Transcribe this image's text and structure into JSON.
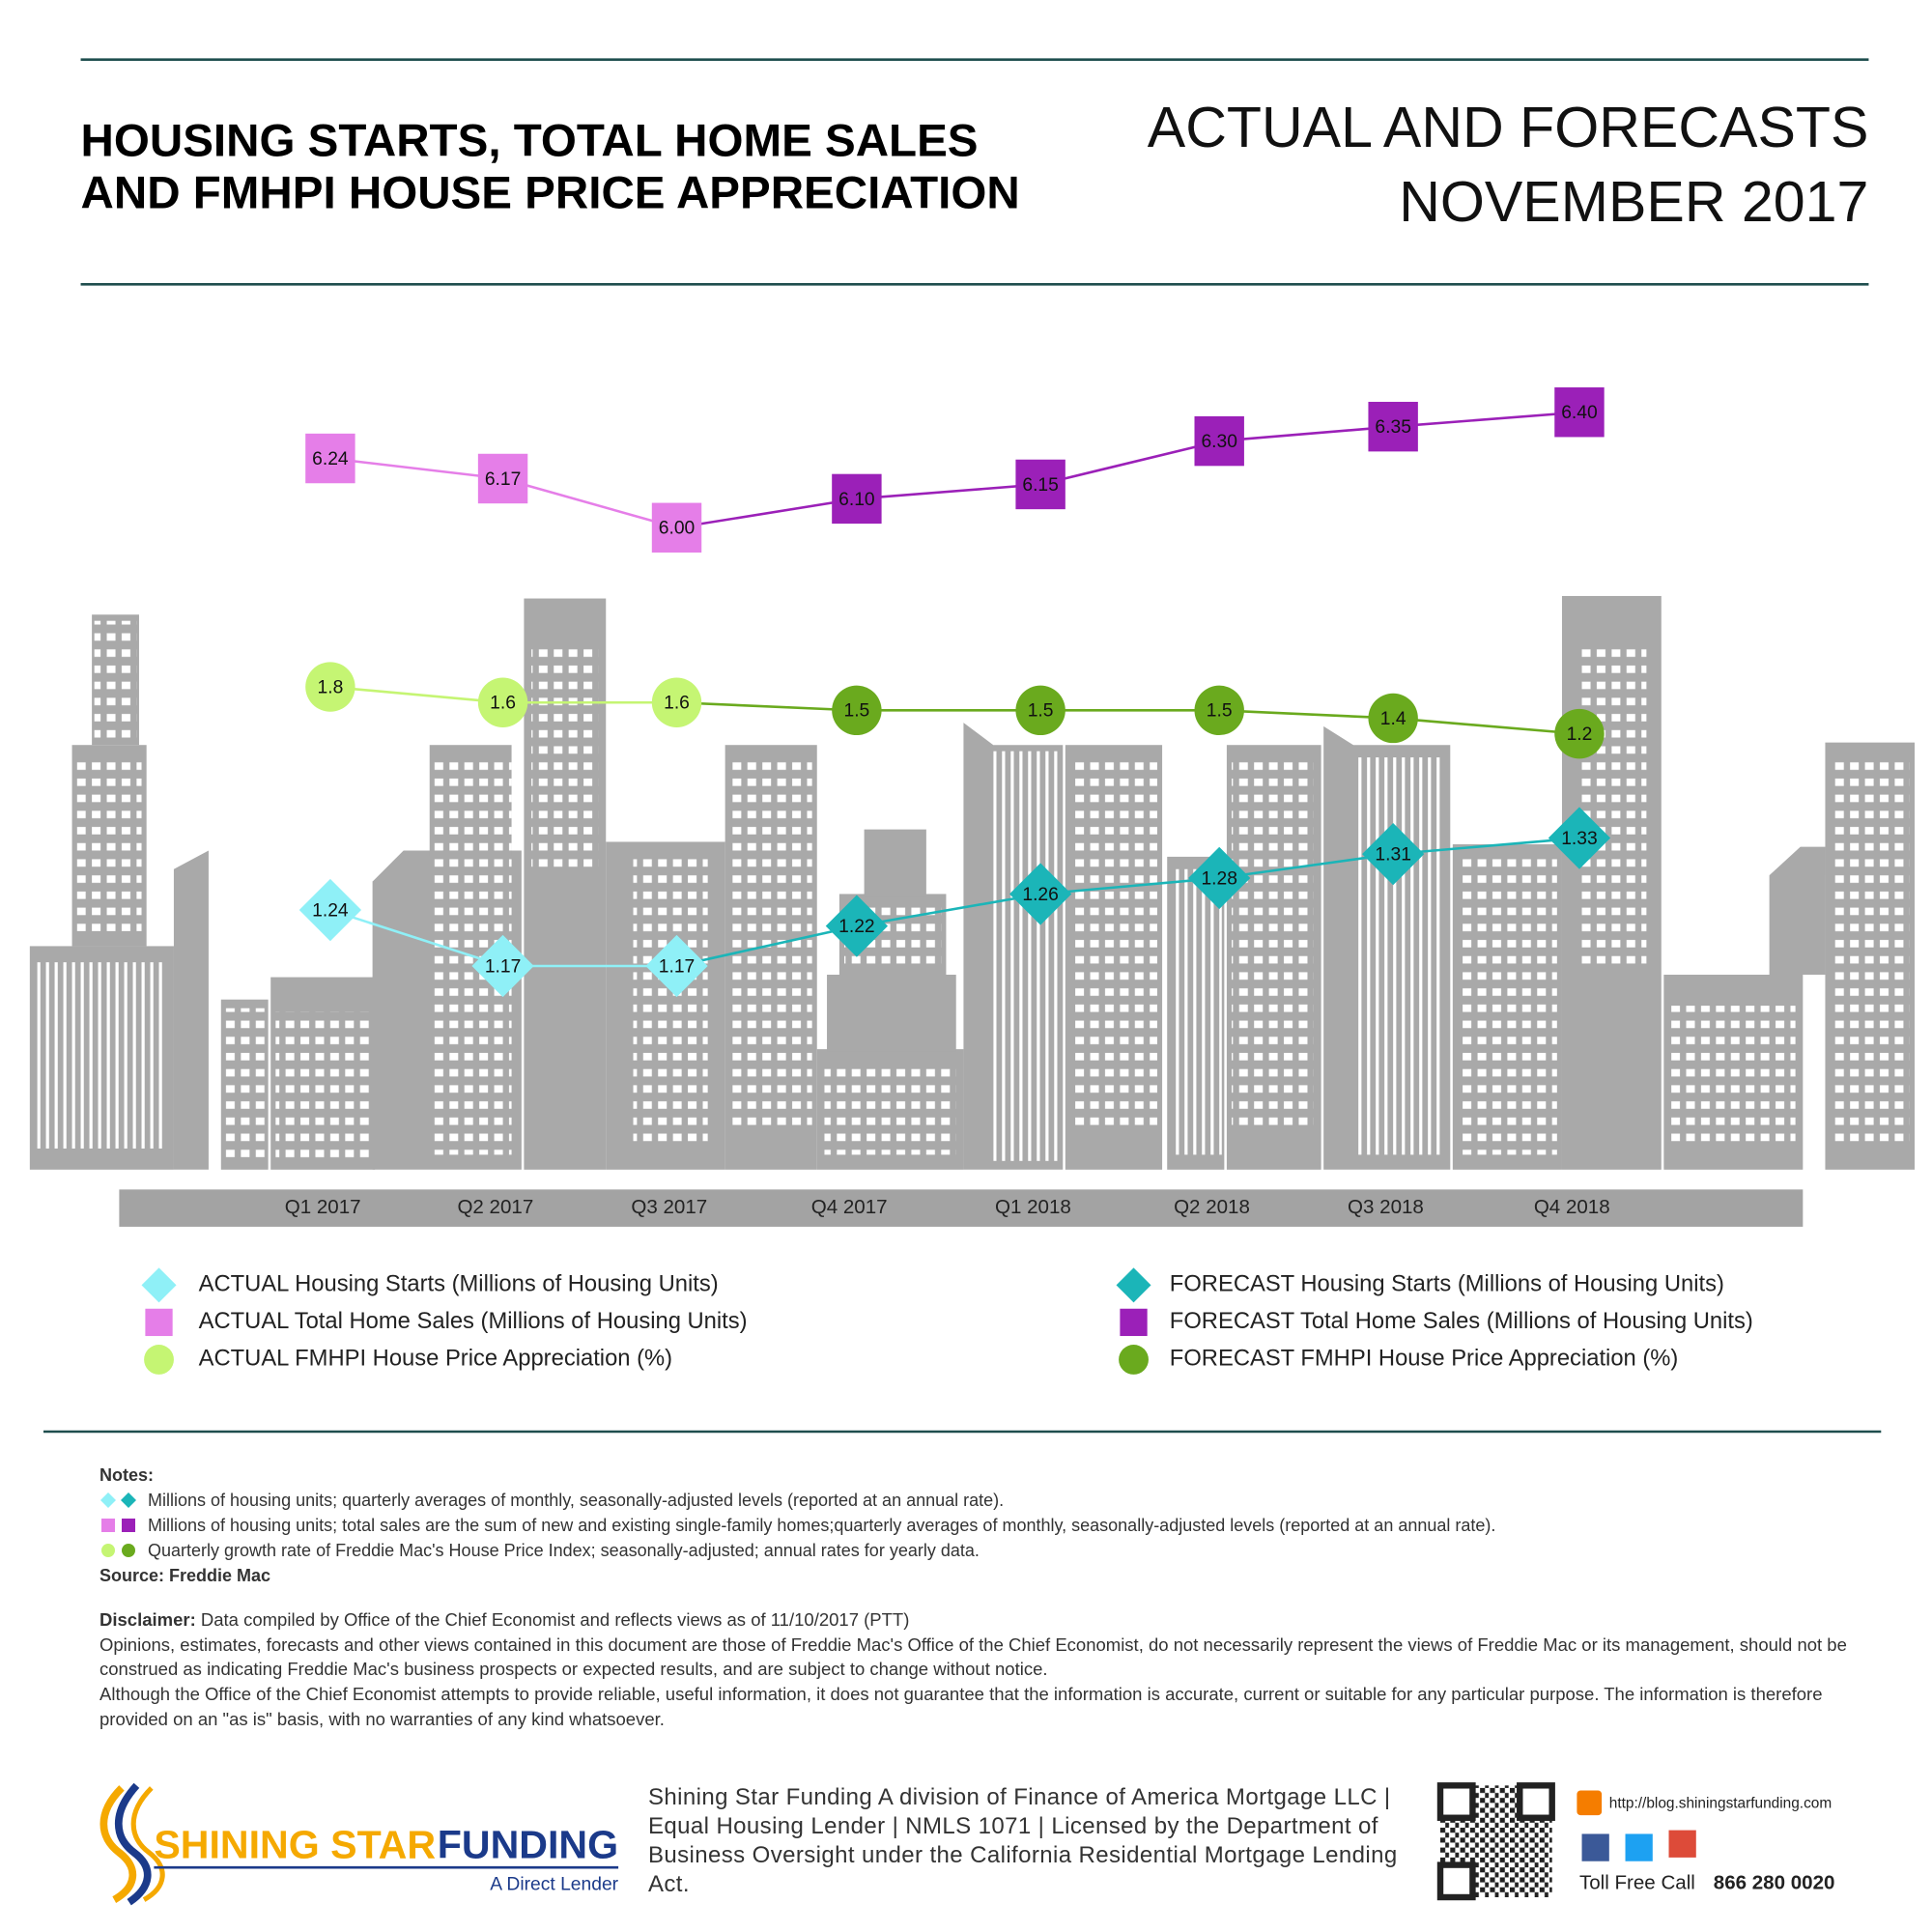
{
  "chart_data": {
    "type": "line",
    "title": [
      "HOUSING STARTS, TOTAL HOME SALES",
      "AND FMHPI HOUSE PRICE APPRECIATION"
    ],
    "subtitle": [
      "ACTUAL AND FORECASTS",
      "NOVEMBER 2017"
    ],
    "categories": [
      "Q1 2017",
      "Q2 2017",
      "Q3 2017",
      "Q4 2017",
      "Q1 2018",
      "Q2 2018",
      "Q3 2018",
      "Q4 2018"
    ],
    "series": [
      {
        "name": "ACTUAL Housing Starts (Millions of Housing Units)",
        "color": "#8ff0f7",
        "marker": "diamond",
        "values": [
          1.24,
          1.17,
          1.17,
          null,
          null,
          null,
          null,
          null
        ]
      },
      {
        "name": "ACTUAL Total Home Sales (Millions of Housing Units)",
        "color": "#e57ee8",
        "marker": "square",
        "values": [
          6.24,
          6.17,
          6.0,
          null,
          null,
          null,
          null,
          null
        ],
        "value_labels": [
          "6.24",
          "6.17",
          "6.00",
          null,
          null,
          null,
          null,
          null
        ]
      },
      {
        "name": "ACTUAL FMHPI House Price Appreciation (%)",
        "color": "#c5f573",
        "marker": "circle",
        "values": [
          1.8,
          1.6,
          1.6,
          null,
          null,
          null,
          null,
          null
        ]
      },
      {
        "name": "FORECAST Housing Starts (Millions of Housing Units)",
        "color": "#1bb5b8",
        "marker": "diamond",
        "values": [
          null,
          null,
          null,
          1.22,
          1.26,
          1.28,
          1.31,
          1.33
        ]
      },
      {
        "name": "FORECAST Total Home Sales (Millions of Housing Units)",
        "color": "#9b20b8",
        "marker": "square",
        "values": [
          null,
          null,
          null,
          6.1,
          6.15,
          6.3,
          6.35,
          6.4
        ],
        "value_labels": [
          null,
          null,
          null,
          "6.10",
          "6.15",
          "6.30",
          "6.35",
          "6.40"
        ]
      },
      {
        "name": "FORECAST FMHPI House Price Appreciation (%)",
        "color": "#6aaa1e",
        "marker": "circle",
        "values": [
          null,
          null,
          null,
          1.5,
          1.5,
          1.5,
          1.4,
          1.2
        ]
      }
    ]
  },
  "notes": {
    "heading": "Notes:",
    "items": [
      "Millions of housing units; quarterly averages of monthly, seasonally-adjusted levels (reported at an annual rate).",
      "Millions of housing units; total sales are the sum of new and existing single-family homes;quarterly averages of monthly, seasonally-adjusted levels (reported at an annual rate).",
      "Quarterly growth rate of Freddie Mac's House Price Index; seasonally-adjusted; annual rates for yearly data."
    ],
    "source": "Source: Freddie Mac"
  },
  "disclaimer": {
    "label": "Disclaimer:",
    "text": "Data compiled by Office of the Chief Economist and reflects views as of 11/10/2017 (PTT)",
    "paragraphs": [
      "Opinions, estimates, forecasts and other views contained in this document are those of Freddie Mac's Office of the Chief Economist, do not necessarily represent the views of Freddie Mac or its management, should not be construed as indicating Freddie Mac's business prospects or expected results, and are subject to change without notice.",
      "Although the Office of the Chief Economist attempts to provide reliable, useful information, it does not guarantee that the information is accurate, current or suitable for any particular purpose. The information is therefore provided on an \"as is\" basis, with no warranties of any kind whatsoever."
    ]
  },
  "footer": {
    "logo": {
      "brand": "SHINING STAR",
      "brand_2": "FUNDING",
      "tagline": "A Direct Lender"
    },
    "company_text": "Shining Star Funding A division of Finance of America Mortgage LLC | Equal Housing Lender | NMLS 1071 | Licensed by the Department of Business Oversight under the California Residential Mortgage Lending Act.",
    "url": "http://blog.shiningstarfunding.com",
    "toll_free_label": "Toll Free Call",
    "phone": "866 280 0020"
  }
}
